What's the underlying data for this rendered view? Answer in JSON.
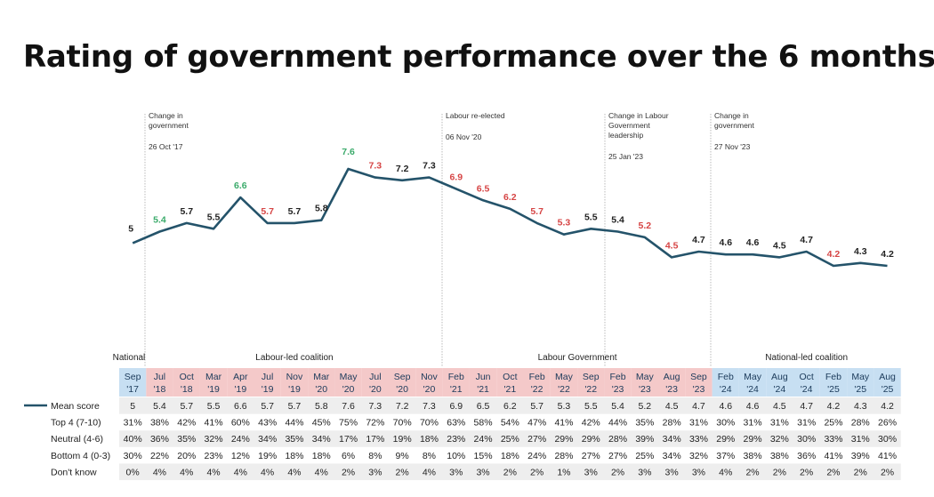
{
  "title": "Rating of government performance over the 6 months",
  "chart_data": {
    "type": "line",
    "title": "Rating of government performance over the 6 months",
    "line_color": "#24536a",
    "label_colors": {
      "up": "#3aaa6a",
      "down": "#d64545",
      "neutral": "#222222"
    },
    "periods": [
      {
        "label": "National",
        "color": "#ffffff"
      },
      {
        "label": "Labour-led coalition",
        "color": "#f4c9c9"
      },
      {
        "label": "Labour Government",
        "color": "#f4c9c9"
      },
      {
        "label": "National-led coalition",
        "color": "#c7dff2"
      }
    ],
    "annotations": [
      {
        "lines": [
          "Change in",
          "government"
        ],
        "date": "26 Oct '17"
      },
      {
        "lines": [
          "Labour re-elected"
        ],
        "date": "06 Nov '20"
      },
      {
        "lines": [
          "Change in Labour",
          "Government",
          "leadership"
        ],
        "date": "25 Jan '23"
      },
      {
        "lines": [
          "Change in",
          "government"
        ],
        "date": "27 Nov '23"
      }
    ],
    "categories": [
      {
        "m": "Sep",
        "y": "'17"
      },
      {
        "m": "Jul",
        "y": "'18"
      },
      {
        "m": "Oct",
        "y": "'18"
      },
      {
        "m": "Mar",
        "y": "'19"
      },
      {
        "m": "Apr",
        "y": "'19"
      },
      {
        "m": "Jul",
        "y": "'19"
      },
      {
        "m": "Nov",
        "y": "'19"
      },
      {
        "m": "Mar",
        "y": "'20"
      },
      {
        "m": "May",
        "y": "'20"
      },
      {
        "m": "Jul",
        "y": "'20"
      },
      {
        "m": "Sep",
        "y": "'20"
      },
      {
        "m": "Nov",
        "y": "'20"
      },
      {
        "m": "Feb",
        "y": "'21"
      },
      {
        "m": "Jun",
        "y": "'21"
      },
      {
        "m": "Oct",
        "y": "'21"
      },
      {
        "m": "Feb",
        "y": "'22"
      },
      {
        "m": "May",
        "y": "'22"
      },
      {
        "m": "Sep",
        "y": "'22"
      },
      {
        "m": "Feb",
        "y": "'23"
      },
      {
        "m": "May",
        "y": "'23"
      },
      {
        "m": "Aug",
        "y": "'23"
      },
      {
        "m": "Sep",
        "y": "'23"
      },
      {
        "m": "Feb",
        "y": "'24"
      },
      {
        "m": "May",
        "y": "'24"
      },
      {
        "m": "Aug",
        "y": "'24"
      },
      {
        "m": "Oct",
        "y": "'24"
      },
      {
        "m": "Feb",
        "y": "'25"
      },
      {
        "m": "May",
        "y": "'25"
      },
      {
        "m": "Aug",
        "y": "'25"
      }
    ],
    "series": [
      {
        "name": "Mean score",
        "values": [
          5,
          5.4,
          5.7,
          5.5,
          6.6,
          5.7,
          5.7,
          5.8,
          7.6,
          7.3,
          7.2,
          7.3,
          6.9,
          6.5,
          6.2,
          5.7,
          5.3,
          5.5,
          5.4,
          5.2,
          4.5,
          4.7,
          4.6,
          4.6,
          4.5,
          4.7,
          4.2,
          4.3,
          4.2
        ],
        "labels": [
          "5",
          "5.4",
          "5.7",
          "5.5",
          "6.6",
          "5.7",
          "5.7",
          "5.8",
          "7.6",
          "7.3",
          "7.2",
          "7.3",
          "6.9",
          "6.5",
          "6.2",
          "5.7",
          "5.3",
          "5.5",
          "5.4",
          "5.2",
          "4.5",
          "4.7",
          "4.6",
          "4.6",
          "4.5",
          "4.7",
          "4.2",
          "4.3",
          "4.2"
        ],
        "label_tone": [
          "n",
          "u",
          "n",
          "n",
          "u",
          "d",
          "n",
          "n",
          "u",
          "d",
          "n",
          "n",
          "d",
          "d",
          "d",
          "d",
          "d",
          "n",
          "n",
          "d",
          "d",
          "n",
          "n",
          "n",
          "n",
          "n",
          "d",
          "n",
          "n"
        ]
      }
    ],
    "table": [
      {
        "label": "Mean score",
        "values": [
          "5",
          "5.4",
          "5.7",
          "5.5",
          "6.6",
          "5.7",
          "5.7",
          "5.8",
          "7.6",
          "7.3",
          "7.2",
          "7.3",
          "6.9",
          "6.5",
          "6.2",
          "5.7",
          "5.3",
          "5.5",
          "5.4",
          "5.2",
          "4.5",
          "4.7",
          "4.6",
          "4.6",
          "4.5",
          "4.7",
          "4.2",
          "4.3",
          "4.2"
        ]
      },
      {
        "label": "Top 4 (7-10)",
        "values": [
          "31%",
          "38%",
          "42%",
          "41%",
          "60%",
          "43%",
          "44%",
          "45%",
          "75%",
          "72%",
          "70%",
          "70%",
          "63%",
          "58%",
          "54%",
          "47%",
          "41%",
          "42%",
          "44%",
          "35%",
          "28%",
          "31%",
          "30%",
          "31%",
          "31%",
          "31%",
          "25%",
          "28%",
          "26%"
        ]
      },
      {
        "label": "Neutral (4-6)",
        "values": [
          "40%",
          "36%",
          "35%",
          "32%",
          "24%",
          "34%",
          "35%",
          "34%",
          "17%",
          "17%",
          "19%",
          "18%",
          "23%",
          "24%",
          "25%",
          "27%",
          "29%",
          "29%",
          "28%",
          "39%",
          "34%",
          "33%",
          "29%",
          "29%",
          "32%",
          "30%",
          "33%",
          "31%",
          "30%"
        ]
      },
      {
        "label": "Bottom 4 (0-3)",
        "values": [
          "30%",
          "22%",
          "20%",
          "23%",
          "12%",
          "19%",
          "18%",
          "18%",
          "6%",
          "8%",
          "9%",
          "8%",
          "10%",
          "15%",
          "18%",
          "24%",
          "28%",
          "27%",
          "27%",
          "25%",
          "34%",
          "32%",
          "37%",
          "38%",
          "38%",
          "36%",
          "41%",
          "39%",
          "41%"
        ]
      },
      {
        "label": "Don't know",
        "values": [
          "0%",
          "4%",
          "4%",
          "4%",
          "4%",
          "4%",
          "4%",
          "4%",
          "2%",
          "3%",
          "2%",
          "4%",
          "3%",
          "3%",
          "2%",
          "2%",
          "1%",
          "3%",
          "2%",
          "3%",
          "3%",
          "3%",
          "4%",
          "2%",
          "2%",
          "2%",
          "2%",
          "2%",
          "2%"
        ]
      }
    ],
    "ylim": [
      3.2,
      8.0
    ],
    "grid": false
  }
}
